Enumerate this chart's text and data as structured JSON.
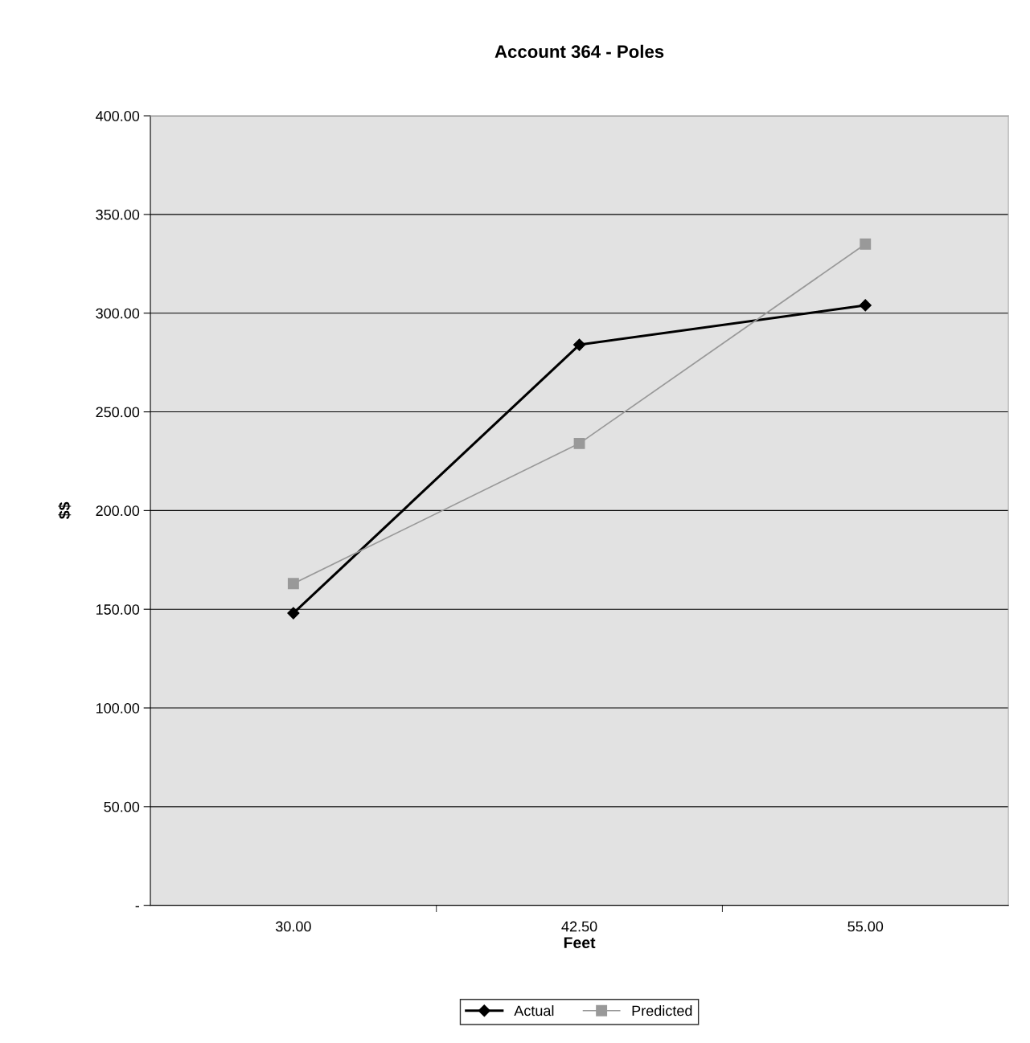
{
  "chart_data": {
    "type": "line",
    "title": "Account 364 - Poles",
    "xlabel": "Feet",
    "ylabel": "$$",
    "categories": [
      "30.00",
      "42.50",
      "55.00"
    ],
    "series": [
      {
        "name": "Actual",
        "color": "#000000",
        "marker": "diamond",
        "values": [
          148,
          284,
          304
        ]
      },
      {
        "name": "Predicted",
        "color": "#999999",
        "marker": "square",
        "values": [
          163,
          234,
          335
        ]
      }
    ],
    "ylim": [
      0,
      400
    ],
    "yticks": [
      {
        "value": 0,
        "label": "-"
      },
      {
        "value": 50,
        "label": "50.00"
      },
      {
        "value": 100,
        "label": "100.00"
      },
      {
        "value": 150,
        "label": "150.00"
      },
      {
        "value": 200,
        "label": "200.00"
      },
      {
        "value": 250,
        "label": "250.00"
      },
      {
        "value": 300,
        "label": "300.00"
      },
      {
        "value": 350,
        "label": "350.00"
      },
      {
        "value": 400,
        "label": "400.00"
      }
    ],
    "grid": "y",
    "legend": "bottom",
    "line_style": "solid"
  }
}
